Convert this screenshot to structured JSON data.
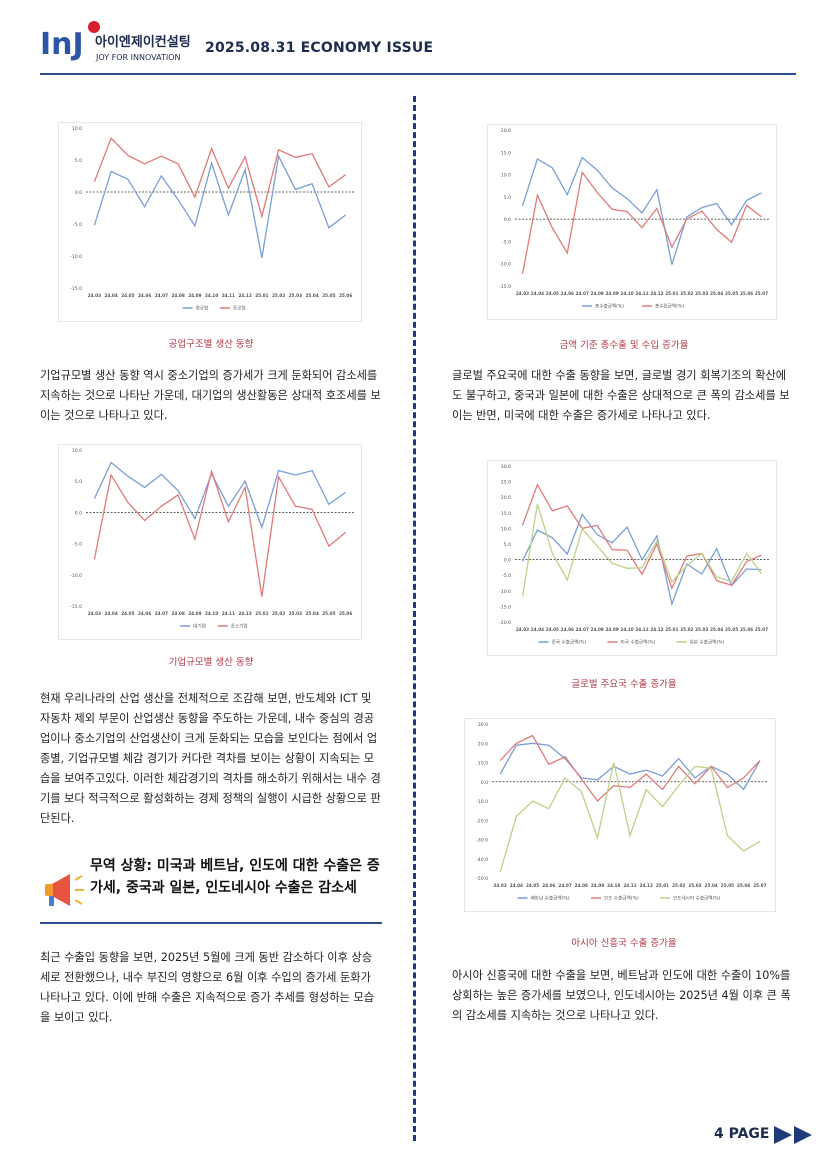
{
  "header": {
    "logo_letters": "InJ",
    "logo_korean": "아이엔제이컨설팅",
    "logo_tagline": "JOY FOR INNOVATION",
    "issue": "2025.08.31 ECONOMY ISSUE",
    "accent": "#1d2b4f",
    "logo_red": "#d81e2c",
    "logo_blue": "#2d55a6"
  },
  "left": {
    "caption1": "공업구조별 생산 동향",
    "para1": "기업규모별 생산 동향 역시 중소기업의 증가세가 크게 둔화되어 감소세를 지속하는 것으로 나타난 가운데, 대기업의 생산활동은 상대적 호조세를 보이는 것으로 나타나고 있다.",
    "caption2": "기업규모별 생산 동향",
    "para2": "현재 우리나라의 산업 생산을 전체적으로 조감해 보면, 반도체와 ICT 및 자동차 제외 부문이 산업생산 동향을 주도하는 가운데, 내수 중심의 경공업이나 중소기업의 산업생산이 크게 둔화되는 모습을 보인다는 점에서 업종별, 기업규모별 체감 경기가 커다란 격차를 보이는 상황이 지속되는 모습을 보여주고있다. 이러한 체감경기의 격차를 해소하기 위해서는 내수 경기를 보다 적극적으로 활성화하는 경제 정책의 실행이 시급한 상황으로 판단된다.",
    "trade_title": "무역 상황: 미국과 베트남, 인도에 대한 수출은 증가세, 중국과 일본, 인도네시아 수출은 감소세",
    "para3": "최근 수출입 동향을 보면, 2025년 5월에 크게 동반 감소하다 이후 상승세로 전환했으나, 내수 부진의 영향으로 6월 이후 수입의 증가세 둔화가 나타나고 있다. 이에 반해 수출은 지속적으로 증가 추세를 형성하는 모습을 보이고 있다."
  },
  "right": {
    "caption1": "금액 기준 총수출 및 수입 증가율",
    "para1": "글로벌 주요국에 대한 수출 동향을 보면, 글로벌 경기 회복기조의 확산에도 불구하고, 중국과 일본에 대한 수출은 상대적으로 큰 폭의 감소세를 보이는 반면, 미국에 대한 수출은 증가세로 나타나고 있다.",
    "caption2": "글로벌 주요국 수출 증가율",
    "caption3": "아시아 신흥국 수출 증가율",
    "para2": "아시아 신흥국에 대한 수출을 보면, 베트남과 인도에 대한 수출이 10%를 상회하는 높은 증가세를 보였으나, 인도네시아는 2025년 4월 이후 큰 폭의 감소세를 지속하는 것으로 나타나고 있다."
  },
  "footer": {
    "page": "4 PAGE"
  },
  "colors": {
    "blue": "#7a9fd6",
    "red": "#e07a7a",
    "green": "#bcd18a",
    "caption": "#b23a48",
    "divider": "#1f3a7a"
  },
  "chart_data": [
    {
      "type": "line",
      "title": "",
      "categories": [
        "24.03",
        "24.04",
        "24.05",
        "24.06",
        "24.07",
        "24.08",
        "24.09",
        "24.10",
        "24.11",
        "24.12",
        "25.01",
        "25.02",
        "25.03",
        "25.04",
        "25.05",
        "25.06"
      ],
      "ylim": [
        -15,
        10
      ],
      "yticks": [
        "10.0",
        "5.0",
        "0.0",
        "-5.0",
        "-10.0",
        "-15.0"
      ],
      "series": [
        {
          "name": "경공업",
          "values": [
            -5.2,
            3.2,
            2.0,
            -2.3,
            2.5,
            -1.2,
            -5.3,
            4.5,
            -3.6,
            3.5,
            -10.3,
            5.6,
            0.4,
            1.3,
            -5.6,
            -3.6
          ]
        },
        {
          "name": "중공업",
          "values": [
            1.6,
            8.4,
            5.7,
            4.4,
            5.6,
            4.4,
            -0.8,
            6.8,
            0.6,
            5.5,
            -3.8,
            6.6,
            5.4,
            6.0,
            0.8,
            2.7
          ]
        }
      ]
    },
    {
      "type": "line",
      "title": "",
      "categories": [
        "24.03",
        "24.04",
        "24.05",
        "24.06",
        "24.07",
        "24.08",
        "24.09",
        "24.10",
        "24.11",
        "24.12",
        "25.01",
        "25.02",
        "25.03",
        "25.04",
        "25.05",
        "25.06"
      ],
      "ylim": [
        -15,
        10
      ],
      "yticks": [
        "10.0",
        "5.0",
        "0.0",
        "-5.0",
        "-10.0",
        "-15.0"
      ],
      "series": [
        {
          "name": "대기업",
          "values": [
            2.2,
            8.0,
            5.8,
            4.0,
            6.1,
            3.5,
            -1.0,
            6.2,
            1.0,
            5.0,
            -2.4,
            6.7,
            6.0,
            6.7,
            1.3,
            3.2
          ]
        },
        {
          "name": "중소기업",
          "values": [
            -7.5,
            6.0,
            1.6,
            -1.3,
            1.0,
            2.8,
            -4.3,
            6.6,
            -1.5,
            4.0,
            -13.5,
            5.7,
            1.0,
            0.5,
            -5.4,
            -3.2
          ]
        }
      ]
    },
    {
      "type": "line",
      "title": "",
      "categories": [
        "24.03",
        "24.04",
        "24.05",
        "24.06",
        "24.07",
        "24.08",
        "24.09",
        "24.10",
        "24.11",
        "24.12",
        "25.01",
        "25.02",
        "25.03",
        "25.04",
        "25.05",
        "25.06",
        "25.07"
      ],
      "ylim": [
        -15,
        20
      ],
      "yticks": [
        "20.0",
        "15.0",
        "10.0",
        "5.0",
        "0.0",
        "-5.0",
        "-10.0",
        "-15.0"
      ],
      "series": [
        {
          "name": "총수출금액(%)",
          "values": [
            3.0,
            13.5,
            11.5,
            5.5,
            13.8,
            11.0,
            7.0,
            4.6,
            1.4,
            6.6,
            -10.2,
            0.5,
            2.6,
            3.5,
            -1.3,
            4.2,
            5.9
          ]
        },
        {
          "name": "총수입금액(%)",
          "values": [
            -12.3,
            5.4,
            -2.0,
            -7.6,
            10.5,
            6.0,
            2.2,
            1.7,
            -1.9,
            2.4,
            -6.3,
            0.0,
            1.8,
            -2.3,
            -5.2,
            3.1,
            0.5
          ]
        }
      ]
    },
    {
      "type": "line",
      "title": "",
      "categories": [
        "24.03",
        "24.04",
        "24.05",
        "24.06",
        "24.07",
        "24.08",
        "24.09",
        "24.10",
        "24.11",
        "24.12",
        "25.01",
        "25.02",
        "25.03",
        "25.04",
        "25.05",
        "25.06",
        "25.07"
      ],
      "ylim": [
        -20,
        30
      ],
      "yticks": [
        "30.0",
        "25.0",
        "20.0",
        "15.0",
        "10.0",
        "5.0",
        "0.0",
        "-5.0",
        "-10.0",
        "-15.0",
        "-20.0"
      ],
      "series": [
        {
          "name": "중국 수출금액(%)",
          "values": [
            -0.5,
            9.5,
            7.0,
            1.8,
            14.5,
            8.0,
            5.4,
            10.4,
            0.0,
            7.6,
            -14.2,
            -1.4,
            -4.6,
            3.5,
            -8.3,
            -3.0,
            -3.2
          ]
        },
        {
          "name": "미국 수출금액(%)",
          "values": [
            11.0,
            24.0,
            15.6,
            17.2,
            10.0,
            11.0,
            3.2,
            3.0,
            -4.7,
            5.0,
            -9.2,
            1.1,
            2.0,
            -6.8,
            -8.2,
            -0.6,
            1.4
          ]
        },
        {
          "name": "일본 수출금액(%)",
          "values": [
            -11.8,
            17.8,
            2.0,
            -6.5,
            9.8,
            4.4,
            -1.2,
            -2.8,
            -2.6,
            6.0,
            -7.1,
            -2.0,
            2.0,
            -5.6,
            -7.0,
            2.0,
            -4.5
          ]
        }
      ]
    },
    {
      "type": "line",
      "title": "",
      "categories": [
        "24.03",
        "24.04",
        "24.05",
        "24.06",
        "24.07",
        "24.08",
        "24.09",
        "24.10",
        "24.11",
        "24.12",
        "25.01",
        "25.02",
        "25.03",
        "25.04",
        "25.05",
        "25.06",
        "25.07"
      ],
      "ylim": [
        -50,
        30
      ],
      "yticks": [
        "30.0",
        "20.0",
        "10.0",
        "0.0",
        "-10.0",
        "-20.0",
        "-30.0",
        "-40.0",
        "-50.0"
      ],
      "series": [
        {
          "name": "베트남 수출금액(%)",
          "values": [
            4.0,
            19.0,
            20.0,
            19.0,
            12.0,
            2.0,
            1.0,
            8.0,
            4.0,
            6.0,
            3.0,
            12.0,
            2.0,
            8.0,
            4.0,
            -4.0,
            11.0
          ]
        },
        {
          "name": "인도 수출금액(%)",
          "values": [
            11.0,
            20.0,
            24.0,
            9.0,
            13.0,
            1.5,
            -10.0,
            -2.0,
            -3.0,
            4.0,
            -4.0,
            8.0,
            -1.0,
            8.0,
            -3.0,
            2.0,
            11.0
          ]
        },
        {
          "name": "인도네시아 수출금액(%)",
          "values": [
            -47.0,
            -18.0,
            -10.0,
            -14.0,
            2.0,
            -5.0,
            -29.0,
            10.0,
            -28.0,
            -4.0,
            -13.0,
            -2.0,
            8.0,
            7.0,
            -28.0,
            -36.0,
            -31.0
          ]
        }
      ]
    }
  ]
}
